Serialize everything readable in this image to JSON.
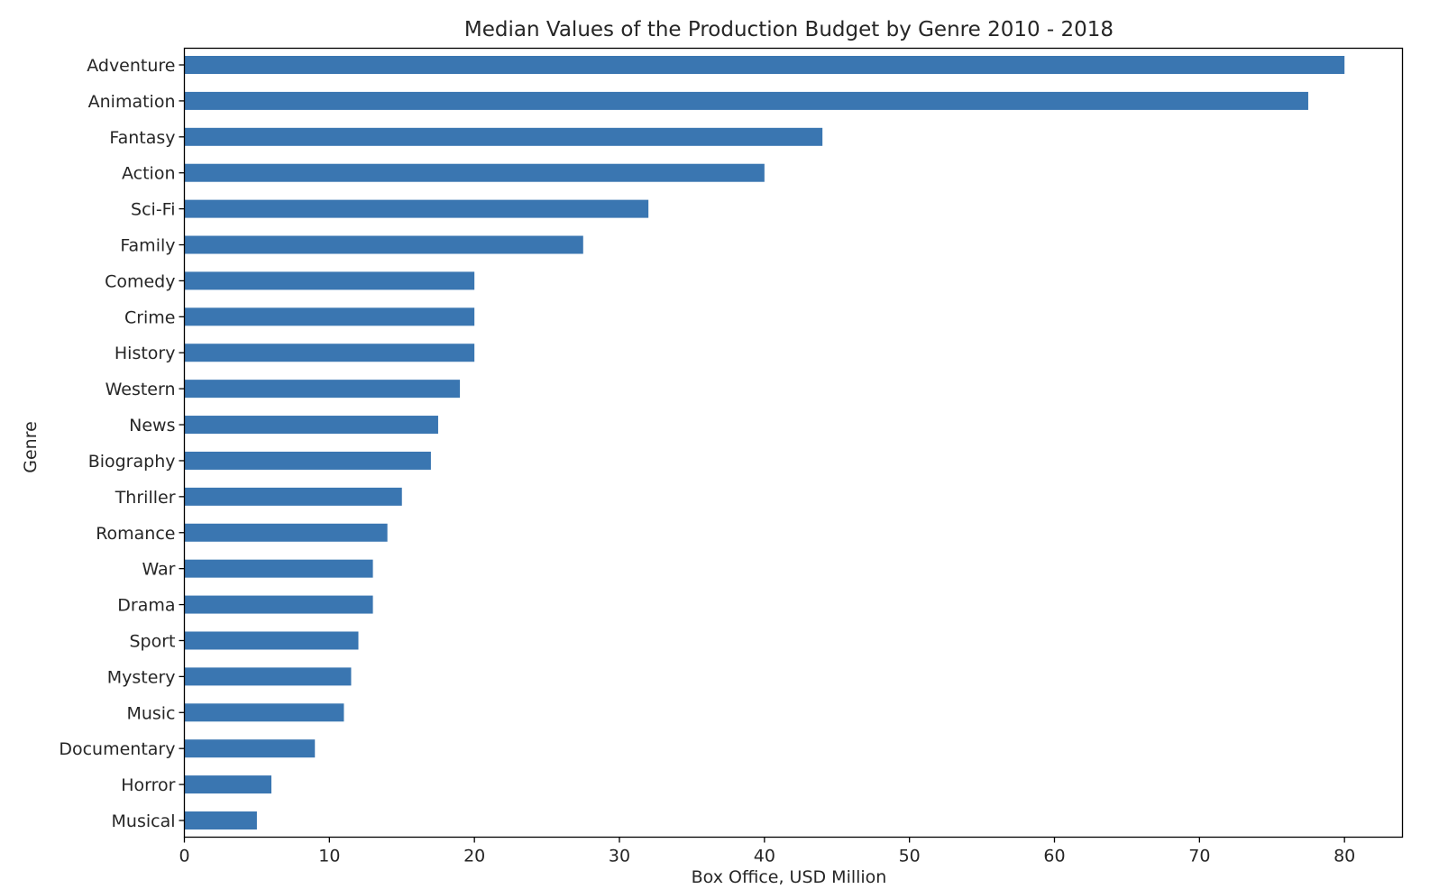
{
  "colors": {
    "bar": "#3a76b1",
    "axis": "#000000",
    "text": "#262626",
    "background": "#ffffff"
  },
  "chart_data": {
    "type": "bar",
    "orientation": "horizontal",
    "title": "Median Values of the Production Budget by Genre 2010 - 2018",
    "xlabel": "Box Office, USD Million",
    "ylabel": "Genre",
    "xlim": [
      0,
      84
    ],
    "xticks": [
      0,
      10,
      20,
      30,
      40,
      50,
      60,
      70,
      80
    ],
    "grid": false,
    "legend": "none",
    "categories": [
      "Adventure",
      "Animation",
      "Fantasy",
      "Action",
      "Sci-Fi",
      "Family",
      "Comedy",
      "Crime",
      "History",
      "Western",
      "News",
      "Biography",
      "Thriller",
      "Romance",
      "War",
      "Drama",
      "Sport",
      "Mystery",
      "Music",
      "Documentary",
      "Horror",
      "Musical"
    ],
    "values": [
      80,
      77.5,
      44,
      40,
      32,
      27.5,
      20,
      20,
      20,
      19,
      17.5,
      17,
      15,
      14,
      13,
      13,
      12,
      11.5,
      11,
      9,
      6,
      5
    ]
  }
}
